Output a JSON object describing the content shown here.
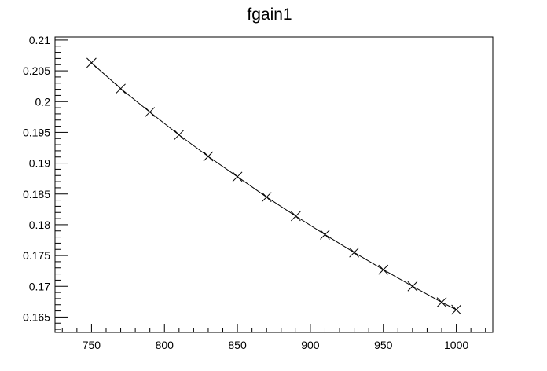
{
  "chart_data": {
    "type": "line",
    "title": "fgain1",
    "xlabel": "",
    "ylabel": "",
    "xlim": [
      725,
      1025
    ],
    "ylim": [
      0.1625,
      0.2105
    ],
    "grid": false,
    "x_ticks": [
      750,
      800,
      850,
      900,
      950,
      1000
    ],
    "x_tick_labels": [
      "750",
      "800",
      "850",
      "900",
      "950",
      "1000"
    ],
    "y_ticks": [
      0.165,
      0.17,
      0.175,
      0.18,
      0.185,
      0.19,
      0.195,
      0.2,
      0.205,
      0.21
    ],
    "y_tick_labels": [
      "0.165",
      "0.17",
      "0.175",
      "0.18",
      "0.185",
      "0.19",
      "0.195",
      "0.2",
      "0.205",
      "0.21"
    ],
    "marker": "x",
    "series": [
      {
        "x": [
          750,
          770,
          790,
          810,
          830,
          850,
          870,
          890,
          910,
          930,
          950,
          970,
          990,
          1000
        ],
        "y": [
          0.2063,
          0.2021,
          0.1983,
          0.1946,
          0.1911,
          0.1878,
          0.1845,
          0.1814,
          0.1784,
          0.1755,
          0.1727,
          0.17,
          0.1674,
          0.1662
        ]
      }
    ]
  }
}
